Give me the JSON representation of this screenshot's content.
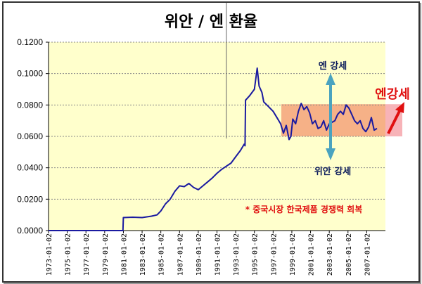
{
  "chart_data": {
    "type": "line",
    "title": "위안 / 엔 환율",
    "xlabel": "",
    "ylabel": "",
    "xlim": [
      1973,
      2009
    ],
    "ylim": [
      0,
      0.12
    ],
    "grid": true,
    "y_ticks": [
      "0.0000",
      "0.0200",
      "0.0400",
      "0.0600",
      "0.0800",
      "0.1000",
      "0.1200"
    ],
    "y_tick_values": [
      0,
      0.02,
      0.04,
      0.06,
      0.08,
      0.1,
      0.12
    ],
    "x_ticks": [
      "1973-01-02",
      "1975-01-02",
      "1977-01-02",
      "1979-01-02",
      "1981-01-02",
      "1983-01-02",
      "1985-01-02",
      "1987-01-02",
      "1989-01-02",
      "1991-01-02",
      "1993-01-02",
      "1995-01-02",
      "1997-01-02",
      "1999-01-02",
      "2001-01-02",
      "2003-01-02",
      "2005-01-02",
      "2007-01-02"
    ],
    "series": [
      {
        "name": "위안/엔",
        "color": "#1a1aa0",
        "points": [
          [
            1973,
            0
          ],
          [
            1980.95,
            0
          ],
          [
            1981.0,
            0.0083
          ],
          [
            1982,
            0.0085
          ],
          [
            1983,
            0.0083
          ],
          [
            1984,
            0.0092
          ],
          [
            1984.6,
            0.01
          ],
          [
            1985,
            0.0125
          ],
          [
            1985.5,
            0.017
          ],
          [
            1986,
            0.02
          ],
          [
            1986.5,
            0.025
          ],
          [
            1987,
            0.0285
          ],
          [
            1987.5,
            0.028
          ],
          [
            1988,
            0.03
          ],
          [
            1988.5,
            0.0275
          ],
          [
            1989,
            0.026
          ],
          [
            1989.5,
            0.0285
          ],
          [
            1990,
            0.031
          ],
          [
            1990.5,
            0.0335
          ],
          [
            1991,
            0.0365
          ],
          [
            1991.5,
            0.039
          ],
          [
            1992,
            0.041
          ],
          [
            1992.5,
            0.043
          ],
          [
            1993,
            0.047
          ],
          [
            1993.5,
            0.051
          ],
          [
            1993.9,
            0.055
          ],
          [
            1994.0,
            0.054
          ],
          [
            1994.05,
            0.083
          ],
          [
            1994.5,
            0.086
          ],
          [
            1995,
            0.09
          ],
          [
            1995.3,
            0.1035
          ],
          [
            1995.5,
            0.092
          ],
          [
            1995.8,
            0.088
          ],
          [
            1996,
            0.082
          ],
          [
            1996.5,
            0.079
          ],
          [
            1997,
            0.076
          ],
          [
            1997.4,
            0.072
          ],
          [
            1997.8,
            0.068
          ],
          [
            1998.1,
            0.062
          ],
          [
            1998.4,
            0.067
          ],
          [
            1998.7,
            0.058
          ],
          [
            1998.9,
            0.06
          ],
          [
            1999.1,
            0.071
          ],
          [
            1999.4,
            0.068
          ],
          [
            1999.7,
            0.076
          ],
          [
            2000,
            0.081
          ],
          [
            2000.3,
            0.077
          ],
          [
            2000.6,
            0.079
          ],
          [
            2000.9,
            0.075
          ],
          [
            2001.2,
            0.068
          ],
          [
            2001.5,
            0.07
          ],
          [
            2001.8,
            0.065
          ],
          [
            2002.1,
            0.066
          ],
          [
            2002.4,
            0.07
          ],
          [
            2002.7,
            0.064
          ],
          [
            2003,
            0.068
          ],
          [
            2003.3,
            0.069
          ],
          [
            2003.6,
            0.07
          ],
          [
            2003.9,
            0.074
          ],
          [
            2004.2,
            0.076
          ],
          [
            2004.5,
            0.074
          ],
          [
            2004.8,
            0.08
          ],
          [
            2005.1,
            0.078
          ],
          [
            2005.4,
            0.074
          ],
          [
            2005.7,
            0.07
          ],
          [
            2006,
            0.068
          ],
          [
            2006.3,
            0.07
          ],
          [
            2006.6,
            0.065
          ],
          [
            2006.9,
            0.063
          ],
          [
            2007.2,
            0.066
          ],
          [
            2007.5,
            0.072
          ],
          [
            2007.8,
            0.064
          ],
          [
            2008.1,
            0.065
          ]
        ]
      }
    ],
    "annotations": {
      "yen_strong_top": "엔 강세",
      "yuan_strong_bottom": "위안 강세",
      "yen_strong_red": "엔강세",
      "note": "* 중국시장 한국제품 경쟁력 회복",
      "band_range": [
        0.06,
        0.0805
      ],
      "marker_year": 1992.0
    },
    "colors": {
      "plot_bg": "#ffffcc",
      "band": "#f5a37a",
      "band_ext": "#f7b3b8",
      "arrow_teal": "#4aa3bf",
      "red": "#e01010"
    }
  }
}
